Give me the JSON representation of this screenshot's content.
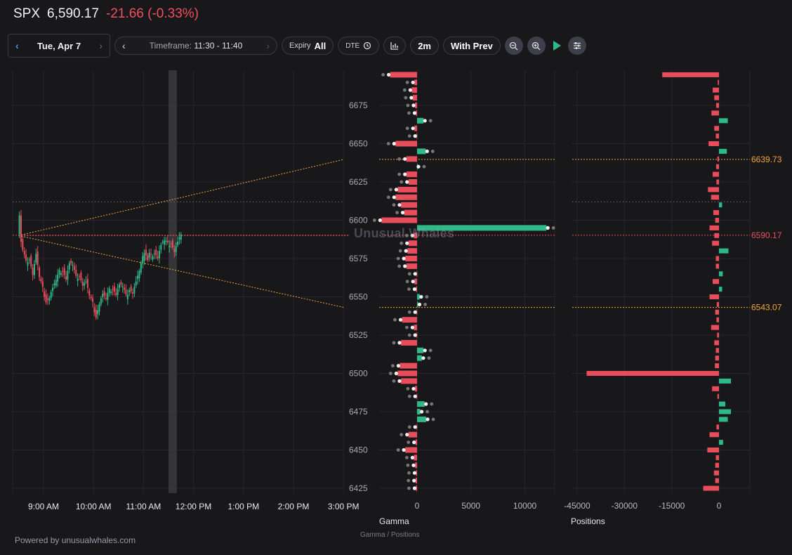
{
  "header": {
    "symbol": "SPX",
    "price": "6,590.17",
    "change": "-21.66 (-0.33%)"
  },
  "toolbar": {
    "date": "Tue, Apr 7",
    "prev_chevron": "‹",
    "next_chevron": "›",
    "timeframe_label": "Timeframe:",
    "timeframe_value": "11:30 - 11:40",
    "expiry_label": "Expiry",
    "expiry_value": "All",
    "dte_label": "DTE",
    "interval": "2m",
    "compare": "With Prev",
    "icons": [
      "chevron-left-icon",
      "chevron-right-icon",
      "clock-icon",
      "bar-chart-icon",
      "zoom-out-icon",
      "zoom-in-icon",
      "play-icon",
      "sliders-icon"
    ]
  },
  "colors": {
    "up": "#2fb888",
    "down": "#e84d5b",
    "level": "#f2a53a",
    "current": "#e84d5b",
    "bg": "#18181b"
  },
  "x_labels": [
    "9:00 AM",
    "10:00 AM",
    "11:00 AM",
    "12:00 PM",
    "1:00 PM",
    "2:00 PM",
    "3:00 PM"
  ],
  "gamma_title": "Gamma",
  "positions_title": "Positions",
  "subcaption": "Gamma / Positions",
  "watermark": "Unusual Whales",
  "footer": "Powered by unusualwhales.com",
  "chart_data": [
    {
      "type": "candlestick",
      "ylim": [
        6418,
        6700
      ],
      "yticks": [
        6425,
        6450,
        6475,
        6500,
        6525,
        6550,
        6575,
        6600,
        6625,
        6650,
        6675
      ],
      "x_ticks": [
        "9:00 AM",
        "10:00 AM",
        "11:00 AM",
        "12:00 PM",
        "1:00 PM",
        "2:00 PM",
        "3:00 PM"
      ],
      "current_price": 6590.17,
      "levels": [
        {
          "value": 6639.73,
          "label": "6639.73"
        },
        {
          "value": 6543.07,
          "label": "6543.07"
        }
      ],
      "upper_dotted_level": 6612,
      "selected_window": [
        "11:30",
        "11:40"
      ],
      "path": [
        {
          "t": "8:30",
          "p": 6590
        },
        {
          "t": "8:32",
          "p": 6604
        },
        {
          "t": "8:34",
          "p": 6586
        },
        {
          "t": "8:36",
          "p": 6580
        },
        {
          "t": "8:40",
          "p": 6572
        },
        {
          "t": "8:44",
          "p": 6576
        },
        {
          "t": "8:48",
          "p": 6565
        },
        {
          "t": "8:52",
          "p": 6578
        },
        {
          "t": "8:56",
          "p": 6562
        },
        {
          "t": "9:00",
          "p": 6555
        },
        {
          "t": "9:04",
          "p": 6548
        },
        {
          "t": "9:08",
          "p": 6550
        },
        {
          "t": "9:12",
          "p": 6556
        },
        {
          "t": "9:16",
          "p": 6560
        },
        {
          "t": "9:20",
          "p": 6566
        },
        {
          "t": "9:24",
          "p": 6568
        },
        {
          "t": "9:28",
          "p": 6562
        },
        {
          "t": "9:32",
          "p": 6572
        },
        {
          "t": "9:36",
          "p": 6570
        },
        {
          "t": "9:40",
          "p": 6562
        },
        {
          "t": "9:44",
          "p": 6565
        },
        {
          "t": "9:48",
          "p": 6558
        },
        {
          "t": "9:52",
          "p": 6560
        },
        {
          "t": "9:56",
          "p": 6550
        },
        {
          "t": "10:00",
          "p": 6545
        },
        {
          "t": "10:04",
          "p": 6538
        },
        {
          "t": "10:08",
          "p": 6546
        },
        {
          "t": "10:12",
          "p": 6552
        },
        {
          "t": "10:16",
          "p": 6548
        },
        {
          "t": "10:20",
          "p": 6554
        },
        {
          "t": "10:24",
          "p": 6556
        },
        {
          "t": "10:28",
          "p": 6552
        },
        {
          "t": "10:32",
          "p": 6558
        },
        {
          "t": "10:36",
          "p": 6556
        },
        {
          "t": "10:40",
          "p": 6550
        },
        {
          "t": "10:44",
          "p": 6556
        },
        {
          "t": "10:48",
          "p": 6553
        },
        {
          "t": "10:52",
          "p": 6560
        },
        {
          "t": "10:56",
          "p": 6566
        },
        {
          "t": "11:00",
          "p": 6575
        },
        {
          "t": "11:02",
          "p": 6580
        },
        {
          "t": "11:04",
          "p": 6578
        },
        {
          "t": "11:06",
          "p": 6574
        },
        {
          "t": "11:08",
          "p": 6578
        },
        {
          "t": "11:10",
          "p": 6576
        },
        {
          "t": "11:14",
          "p": 6580
        },
        {
          "t": "11:18",
          "p": 6576
        },
        {
          "t": "11:22",
          "p": 6584
        },
        {
          "t": "11:26",
          "p": 6586
        },
        {
          "t": "11:30",
          "p": 6584
        },
        {
          "t": "11:34",
          "p": 6586
        },
        {
          "t": "11:38",
          "p": 6580
        },
        {
          "t": "11:42",
          "p": 6586
        },
        {
          "t": "11:46",
          "p": 6590
        }
      ]
    },
    {
      "type": "bar",
      "title": "Gamma",
      "orientation": "horizontal",
      "xlim": [
        -3500,
        12000
      ],
      "xticks": [
        0,
        5000,
        10000
      ],
      "strikes": [
        6695,
        6690,
        6685,
        6680,
        6675,
        6670,
        6665,
        6660,
        6655,
        6650,
        6645,
        6640,
        6635,
        6630,
        6625,
        6620,
        6615,
        6610,
        6605,
        6600,
        6595,
        6590,
        6585,
        6580,
        6575,
        6570,
        6565,
        6560,
        6555,
        6550,
        6545,
        6540,
        6535,
        6530,
        6525,
        6520,
        6515,
        6510,
        6505,
        6500,
        6495,
        6490,
        6485,
        6480,
        6475,
        6470,
        6465,
        6460,
        6455,
        6450,
        6445,
        6440,
        6435,
        6430,
        6425
      ],
      "values": [
        -2500,
        -250,
        -500,
        -400,
        -200,
        -100,
        600,
        -250,
        -50,
        -2000,
        800,
        -1000,
        0,
        -1000,
        -800,
        -1800,
        -2000,
        -1500,
        -1200,
        -3300,
        12000,
        -300,
        -800,
        -900,
        -1100,
        -1000,
        -50,
        -250,
        -100,
        250,
        100,
        -50,
        -1400,
        -300,
        -50,
        -1500,
        600,
        450,
        -1600,
        -1800,
        -1500,
        -200,
        -50,
        700,
        300,
        850,
        -50,
        -800,
        -150,
        -1100,
        -300,
        -200,
        -100,
        -150,
        -100
      ]
    },
    {
      "type": "bar",
      "title": "Positions",
      "orientation": "horizontal",
      "xlim": [
        -48000,
        10000
      ],
      "xticks": [
        -45000,
        -30000,
        -15000,
        0
      ],
      "strikes": [
        6695,
        6690,
        6685,
        6680,
        6675,
        6670,
        6665,
        6660,
        6655,
        6650,
        6645,
        6640,
        6635,
        6630,
        6625,
        6620,
        6615,
        6610,
        6605,
        6600,
        6595,
        6590,
        6585,
        6580,
        6575,
        6570,
        6565,
        6560,
        6555,
        6550,
        6545,
        6540,
        6535,
        6530,
        6525,
        6520,
        6515,
        6510,
        6505,
        6500,
        6495,
        6490,
        6485,
        6480,
        6475,
        6470,
        6465,
        6460,
        6455,
        6450,
        6445,
        6440,
        6435,
        6430,
        6425
      ],
      "values": [
        -18000,
        -400,
        -2000,
        -1500,
        -900,
        -2400,
        2800,
        -1500,
        -1000,
        -3300,
        2500,
        -500,
        -900,
        -2000,
        -800,
        -3500,
        -2500,
        1000,
        -1800,
        -1200,
        -3000,
        -1500,
        -2200,
        3000,
        -1000,
        -1000,
        1200,
        -2000,
        1000,
        -3000,
        -700,
        -1200,
        -800,
        -2500,
        -600,
        -1500,
        -1000,
        -1200,
        -1300,
        -42000,
        3800,
        -2200,
        -500,
        2000,
        3800,
        2800,
        -800,
        -3000,
        1300,
        -3700,
        -1000,
        -1200,
        -1600,
        -1200,
        -5000
      ]
    }
  ]
}
